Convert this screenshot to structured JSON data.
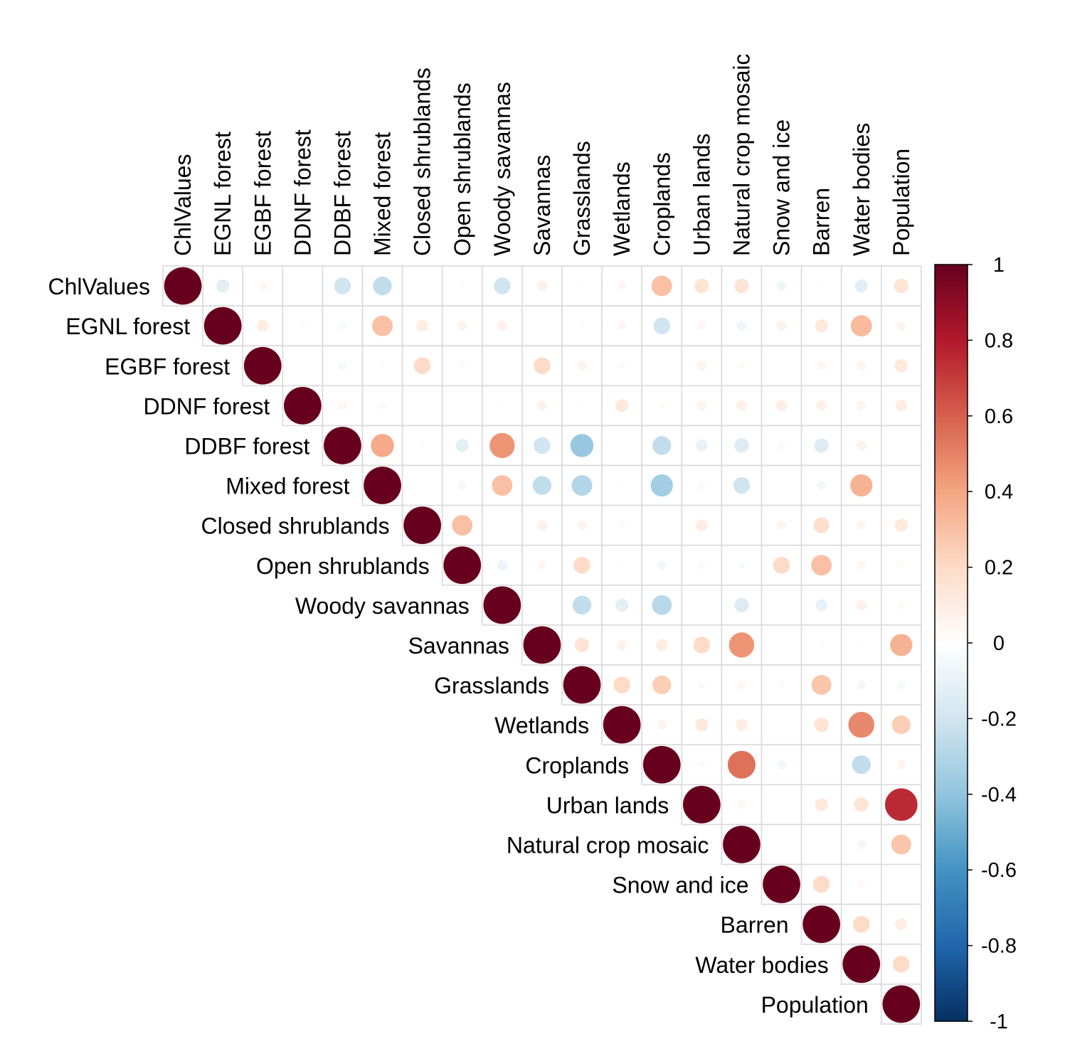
{
  "chart_data": {
    "type": "heatmap",
    "subtype": "correlation-circles-upper-triangle",
    "variables": [
      "ChlValues",
      "EGNL forest",
      "EGBF forest",
      "DDNF forest",
      "DDBF forest",
      "Mixed forest",
      "Closed shrublands",
      "Open shrublands",
      "Woody savannas",
      "Savannas",
      "Grasslands",
      "Wetlands",
      "Croplands",
      "Urban lands",
      "Natural crop mosaic",
      "Snow and ice",
      "Barren",
      "Water bodies",
      "Population"
    ],
    "matrix": [
      [
        1,
        -0.12,
        0.05,
        0,
        -0.2,
        -0.25,
        0,
        -0.02,
        -0.2,
        0.08,
        0.02,
        0.05,
        0.3,
        0.15,
        0.15,
        -0.07,
        -0.02,
        -0.12,
        0.15
      ],
      [
        null,
        1,
        0.1,
        0.02,
        -0.04,
        0.3,
        0.1,
        0.06,
        0.07,
        -0.01,
        -0.02,
        0.05,
        -0.2,
        0.05,
        -0.07,
        0.07,
        0.12,
        0.32,
        0.06
      ],
      [
        null,
        null,
        1,
        0,
        -0.05,
        -0.02,
        0.2,
        0.03,
        0,
        0.2,
        0.06,
        0.03,
        0,
        0.06,
        0.03,
        0,
        0.05,
        0.06,
        0.12
      ],
      [
        null,
        null,
        null,
        1,
        0.05,
        0.04,
        0,
        0,
        0.01,
        0.07,
        0.01,
        0.12,
        0.03,
        0.06,
        0.08,
        0.09,
        0.08,
        0.06,
        0.1
      ],
      [
        null,
        null,
        null,
        null,
        1,
        0.38,
        -0.02,
        -0.12,
        0.45,
        -0.2,
        -0.38,
        0,
        -0.25,
        -0.1,
        -0.15,
        -0.04,
        -0.15,
        0.07,
        0
      ],
      [
        null,
        null,
        null,
        null,
        null,
        1,
        0,
        -0.05,
        0.3,
        -0.25,
        -0.3,
        0.02,
        -0.35,
        -0.04,
        -0.2,
        0,
        -0.06,
        0.35,
        0
      ],
      [
        null,
        null,
        null,
        null,
        null,
        null,
        1,
        0.3,
        0,
        0.08,
        0.06,
        0.03,
        -0.01,
        0.1,
        0,
        0.06,
        0.18,
        0.06,
        0.12
      ],
      [
        null,
        null,
        null,
        null,
        null,
        null,
        null,
        1,
        -0.08,
        0.05,
        0.2,
        0.01,
        -0.06,
        0.04,
        -0.03,
        0.2,
        0.3,
        0.05,
        0.03
      ],
      [
        null,
        null,
        null,
        null,
        null,
        null,
        null,
        null,
        1,
        0,
        -0.25,
        -0.12,
        -0.28,
        0,
        -0.15,
        -0.01,
        -0.1,
        0.08,
        0.04
      ],
      [
        null,
        null,
        null,
        null,
        null,
        null,
        null,
        null,
        null,
        1,
        0.15,
        0.07,
        0.1,
        0.2,
        0.45,
        0,
        0.02,
        -0.02,
        0.35
      ],
      [
        null,
        null,
        null,
        null,
        null,
        null,
        null,
        null,
        null,
        null,
        1,
        0.2,
        0.25,
        -0.04,
        0.05,
        0.03,
        0.28,
        -0.06,
        -0.05
      ],
      [
        null,
        null,
        null,
        null,
        null,
        null,
        null,
        null,
        null,
        null,
        null,
        1,
        0.06,
        0.12,
        0.1,
        0,
        0.15,
        0.48,
        0.25
      ],
      [
        null,
        null,
        null,
        null,
        null,
        null,
        null,
        null,
        null,
        null,
        null,
        null,
        1,
        -0.03,
        0.55,
        -0.06,
        0,
        -0.25,
        0.06
      ],
      [
        null,
        null,
        null,
        null,
        null,
        null,
        null,
        null,
        null,
        null,
        null,
        null,
        null,
        1,
        0.05,
        0,
        0.12,
        0.15,
        0.75
      ],
      [
        null,
        null,
        null,
        null,
        null,
        null,
        null,
        null,
        null,
        null,
        null,
        null,
        null,
        null,
        1,
        0,
        0,
        -0.06,
        0.28
      ],
      [
        null,
        null,
        null,
        null,
        null,
        null,
        null,
        null,
        null,
        null,
        null,
        null,
        null,
        null,
        null,
        1,
        0.2,
        0.04,
        0
      ],
      [
        null,
        null,
        null,
        null,
        null,
        null,
        null,
        null,
        null,
        null,
        null,
        null,
        null,
        null,
        null,
        null,
        1,
        0.2,
        0.1
      ],
      [
        null,
        null,
        null,
        null,
        null,
        null,
        null,
        null,
        null,
        null,
        null,
        null,
        null,
        null,
        null,
        null,
        null,
        1,
        0.2
      ],
      [
        null,
        null,
        null,
        null,
        null,
        null,
        null,
        null,
        null,
        null,
        null,
        null,
        null,
        null,
        null,
        null,
        null,
        null,
        1
      ]
    ],
    "colorbar": {
      "range": [
        -1,
        1
      ],
      "tick_labels": [
        "1",
        "0.8",
        "0.6",
        "0.4",
        "0.2",
        "0",
        "-0.2",
        "-0.4",
        "-0.6",
        "-0.8",
        "-1"
      ],
      "tick_values": [
        1,
        0.8,
        0.6,
        0.4,
        0.2,
        0,
        -0.2,
        -0.4,
        -0.6,
        -0.8,
        -1
      ],
      "colors": [
        "#67001F",
        "#B2182B",
        "#D6604D",
        "#F4A582",
        "#FDDBC7",
        "#FFFFFF",
        "#D1E5F0",
        "#92C5DE",
        "#4393C3",
        "#2166AC",
        "#053061"
      ]
    },
    "grid_color": "#D9D9D9",
    "title": "",
    "xlabel": "",
    "ylabel": ""
  }
}
